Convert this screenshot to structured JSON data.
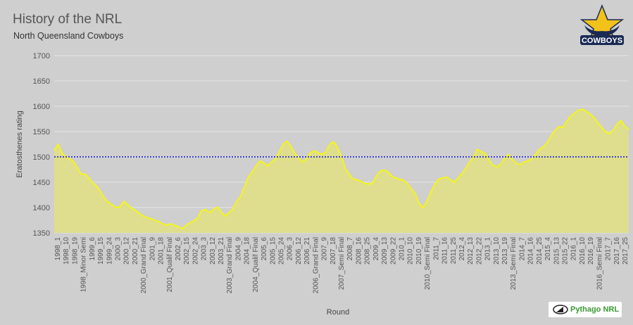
{
  "header": {
    "title": "History of the NRL",
    "subtitle": "North Queensland Cowboys"
  },
  "logo": {
    "text": "COWBOYS",
    "icon": "cowboys-star-logo"
  },
  "badge": {
    "text": "Pythago NRL",
    "icon": "pythago-triangle-icon"
  },
  "chart_data": {
    "type": "area",
    "title": "History of the NRL",
    "subtitle": "North Queensland Cowboys",
    "xlabel": "Round",
    "ylabel": "Eratosthenes rating",
    "ylim": [
      1350,
      1700
    ],
    "yticks": [
      1350,
      1400,
      1450,
      1500,
      1550,
      1600,
      1650,
      1700
    ],
    "grid": true,
    "legend": "none",
    "reference_line": {
      "value": 1500,
      "color": "#2b2bd4",
      "style": "dotted"
    },
    "colors": {
      "line": "#f5f51a",
      "fill": "#dede8e",
      "background": "#cfcfcf",
      "grid": "#e6e6e6"
    },
    "x_tick_labels": [
      "1998_1",
      "1998_10",
      "1998_19",
      "1998_Minor Semi",
      "1999_6",
      "1999_15",
      "1999_24",
      "2000_3",
      "2000_12",
      "2000_21",
      "2000_Grand Final",
      "2001_9",
      "2001_18",
      "2001_Qualif Final",
      "2002_6",
      "2002_15",
      "2002_24",
      "2003_3",
      "2003_12",
      "2003_21",
      "2003_Grand Final",
      "2004_9",
      "2004_18",
      "2004_Qualif Final",
      "2005_6",
      "2005_15",
      "2005_24",
      "2006_3",
      "2006_12",
      "2006_21",
      "2006_Grand Final",
      "2007_9",
      "2007_18",
      "2007_Semi Final",
      "2008_7",
      "2008_16",
      "2008_25",
      "2009_4",
      "2009_13",
      "2009_22",
      "2010_1",
      "2010_10",
      "2010_19",
      "2010_Semi Final",
      "2011_7",
      "2011_16",
      "2011_25",
      "2012_4",
      "2012_13",
      "2012_22",
      "2013_1",
      "2013_10",
      "2013_19",
      "2013_Semi Final",
      "2014_7",
      "2014_16",
      "2014_25",
      "2015_4",
      "2015_13",
      "2015_22",
      "2016_1",
      "2016_10",
      "2016_19",
      "2016_Semi Final",
      "2017_7",
      "2017_16",
      "2017_25"
    ],
    "values": [
      1512,
      1525,
      1508,
      1500,
      1496,
      1490,
      1478,
      1466,
      1466,
      1458,
      1448,
      1442,
      1430,
      1418,
      1410,
      1405,
      1400,
      1402,
      1412,
      1405,
      1398,
      1394,
      1388,
      1383,
      1380,
      1378,
      1375,
      1372,
      1368,
      1365,
      1368,
      1365,
      1362,
      1358,
      1365,
      1370,
      1374,
      1380,
      1394,
      1396,
      1390,
      1396,
      1401,
      1392,
      1383,
      1390,
      1397,
      1412,
      1422,
      1440,
      1460,
      1470,
      1482,
      1492,
      1488,
      1482,
      1490,
      1496,
      1510,
      1525,
      1531,
      1520,
      1507,
      1497,
      1490,
      1496,
      1508,
      1512,
      1508,
      1505,
      1510,
      1525,
      1530,
      1518,
      1500,
      1476,
      1466,
      1456,
      1455,
      1452,
      1448,
      1446,
      1448,
      1462,
      1472,
      1474,
      1470,
      1462,
      1458,
      1456,
      1454,
      1447,
      1437,
      1427,
      1408,
      1400,
      1412,
      1430,
      1445,
      1456,
      1458,
      1460,
      1455,
      1450,
      1458,
      1467,
      1477,
      1490,
      1500,
      1515,
      1510,
      1507,
      1494,
      1484,
      1480,
      1486,
      1497,
      1505,
      1495,
      1488,
      1484,
      1490,
      1492,
      1496,
      1505,
      1515,
      1520,
      1528,
      1542,
      1552,
      1560,
      1558,
      1570,
      1580,
      1586,
      1592,
      1594,
      1590,
      1585,
      1578,
      1568,
      1558,
      1550,
      1545,
      1553,
      1565,
      1572,
      1560,
      1555
    ]
  }
}
